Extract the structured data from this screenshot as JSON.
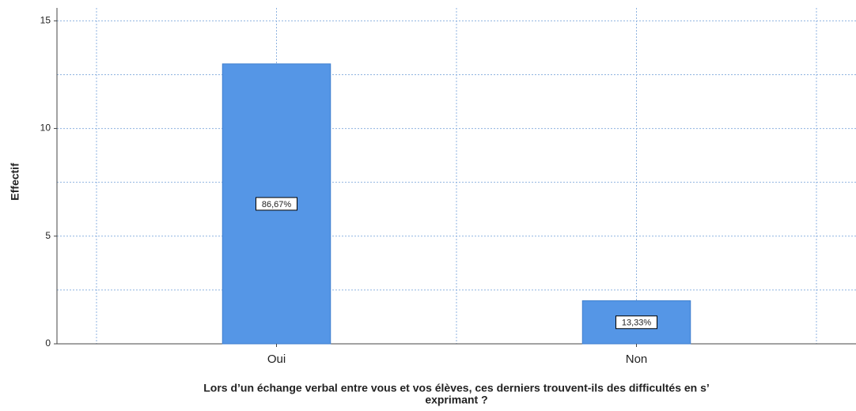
{
  "chart_data": {
    "type": "bar",
    "categories": [
      "Oui",
      "Non"
    ],
    "values": [
      13,
      2
    ],
    "percentages": [
      86.67,
      13.33
    ],
    "percentage_labels": [
      "86,67%",
      "13,33%"
    ],
    "color": "#5596e6",
    "ylim": [
      0,
      15.6
    ],
    "yticks": [
      0,
      5,
      10,
      15
    ],
    "minor_yticks": [
      2.5,
      7.5,
      12.5
    ],
    "grid": true,
    "y_label": "Effectif",
    "x_label": [
      "Lors d’un échange verbal entre vous et vos élèves, ces derniers trouvent-ils des difficultés en s’",
      "exprimant ?"
    ]
  }
}
